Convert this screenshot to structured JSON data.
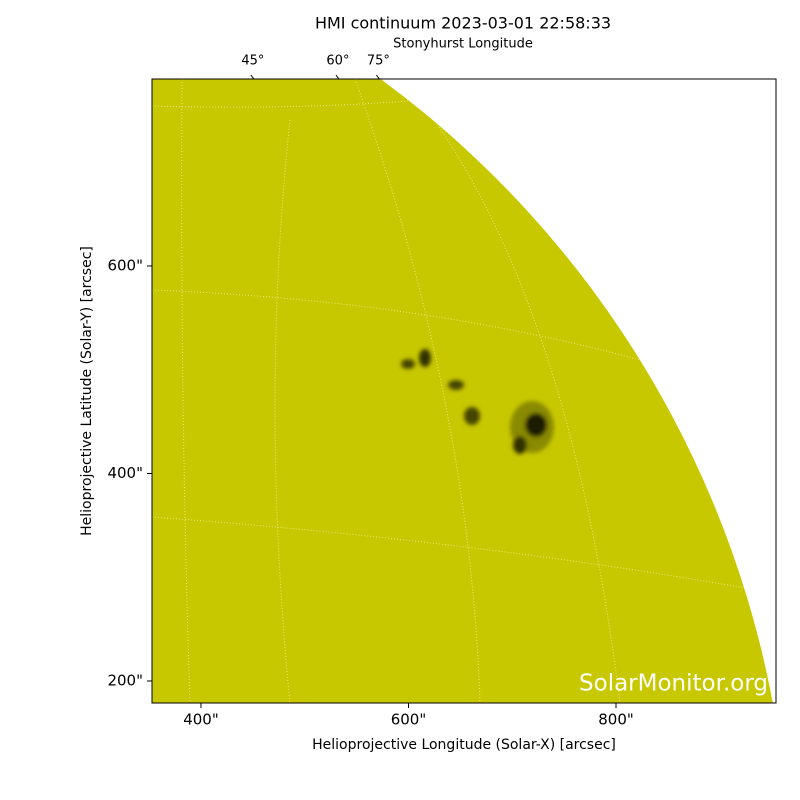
{
  "chart_data": {
    "type": "image",
    "title": "HMI continuum 2023-03-01 22:58:33",
    "x2label": "Stonyhurst Longitude",
    "xlabel": "Helioprojective Longitude (Solar-X) [arcsec]",
    "ylabel": "Helioprojective Latitude (Solar-Y) [arcsec]",
    "watermark": "SolarMonitor.org",
    "color": "#c8c800",
    "xlim": [
      352.8,
      954.2
    ],
    "ylim": [
      178.8,
      780.2
    ],
    "xticks": [
      {
        "value": 400,
        "label": "400\""
      },
      {
        "value": 600,
        "label": "600\""
      },
      {
        "value": 800,
        "label": "800\""
      }
    ],
    "yticks": [
      {
        "value": 200,
        "label": "200\""
      },
      {
        "value": 400,
        "label": "400\""
      },
      {
        "value": 600,
        "label": "600\""
      }
    ],
    "x2ticks": [
      {
        "value": 450,
        "label": "45°"
      },
      {
        "value": 532,
        "label": "60°"
      },
      {
        "value": 571,
        "label": "75°"
      }
    ]
  }
}
